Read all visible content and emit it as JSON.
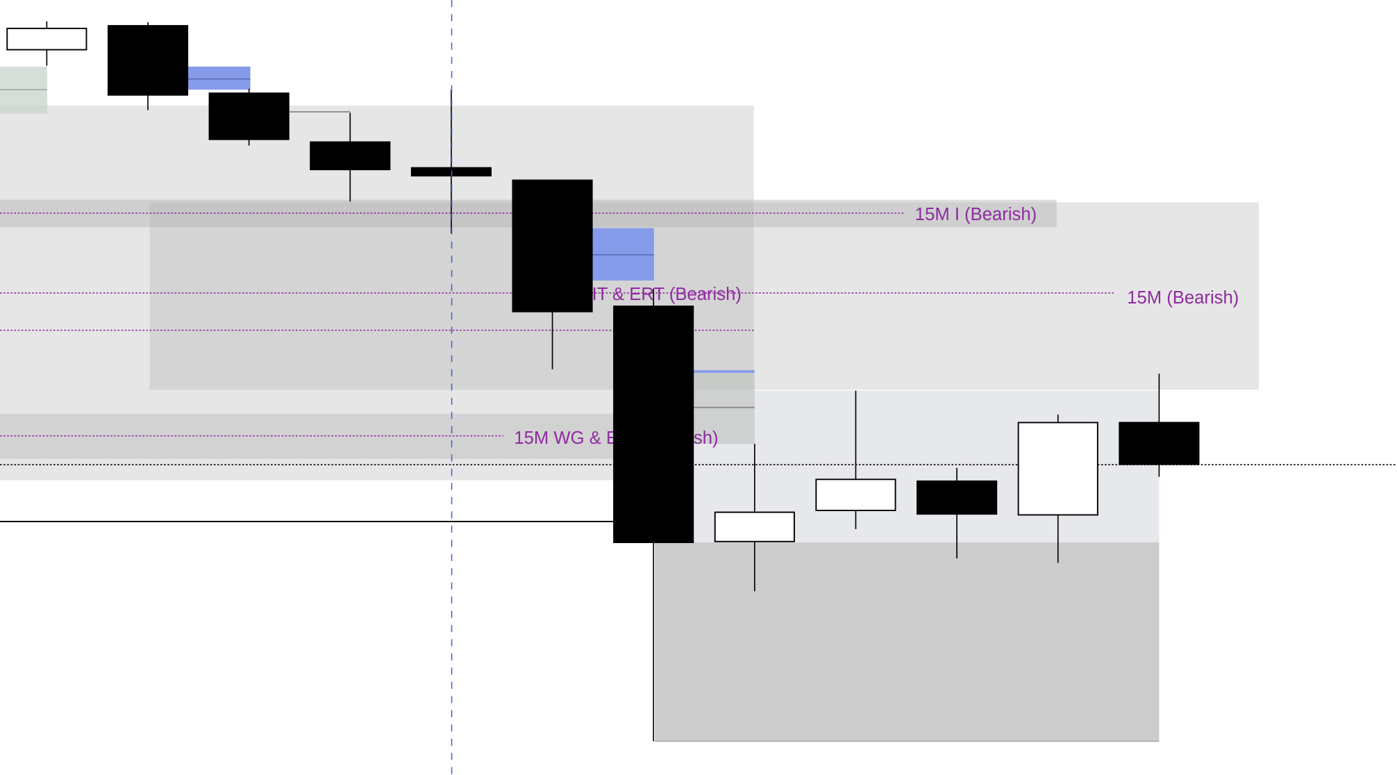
{
  "chart_data": {
    "type": "candlestick",
    "title": "",
    "xlabel": "",
    "ylabel": "",
    "grid": false,
    "ylim": [
      3.8,
      87.3
    ],
    "candles": [
      {
        "open": 81.7,
        "high": 84.9,
        "low": 79.9,
        "close": 84.1
      },
      {
        "open": 84.4,
        "high": 84.8,
        "low": 74.9,
        "close": 76.6
      },
      {
        "open": 76.8,
        "high": 77.3,
        "low": 70.9,
        "close": 71.6
      },
      {
        "open": 71.3,
        "high": 74.6,
        "low": 64.6,
        "close": 68.2
      },
      {
        "open": 68.4,
        "high": 77.2,
        "low": 61.0,
        "close": 67.5
      },
      {
        "open": 67.0,
        "high": 67.0,
        "low": 45.7,
        "close": 52.2
      },
      {
        "open": 52.8,
        "high": 54.8,
        "low": 3.8,
        "close": 26.2
      },
      {
        "open": 26.3,
        "high": 37.3,
        "low": 20.7,
        "close": 29.6
      },
      {
        "open": 29.8,
        "high": 43.3,
        "low": 27.7,
        "close": 33.3
      },
      {
        "open": 33.1,
        "high": 34.6,
        "low": 24.4,
        "close": 29.4
      },
      {
        "open": 29.3,
        "high": 40.6,
        "low": 23.9,
        "close": 39.7
      },
      {
        "open": 39.7,
        "high": 45.2,
        "low": 33.6,
        "close": 35.0
      }
    ],
    "zones": [
      {
        "label": "15M I (Bearish)",
        "top": 64.8,
        "bottom": 61.7,
        "level": 63.3
      },
      {
        "label": "15M IT & ERT (Bearish)",
        "top": 64.5,
        "bottom": 43.4,
        "level": 54.3
      },
      {
        "label": "15M (Bearish)",
        "top": 64.5,
        "bottom": 43.4,
        "level": 54.3
      },
      {
        "label": "15M WG & ERT (Bearish)",
        "top": 40.7,
        "bottom": 35.6,
        "level": 38.2
      }
    ],
    "horizontal_levels": [
      35.0,
      28.6
    ],
    "colors": {
      "bull": "#ffffff",
      "bear": "#000000",
      "label": "#8e2ba0",
      "fvg": "#869bea",
      "zone": "#e6e6e6",
      "zone_dark": "#d0d0d0",
      "cursor": "#3a62d8"
    }
  }
}
